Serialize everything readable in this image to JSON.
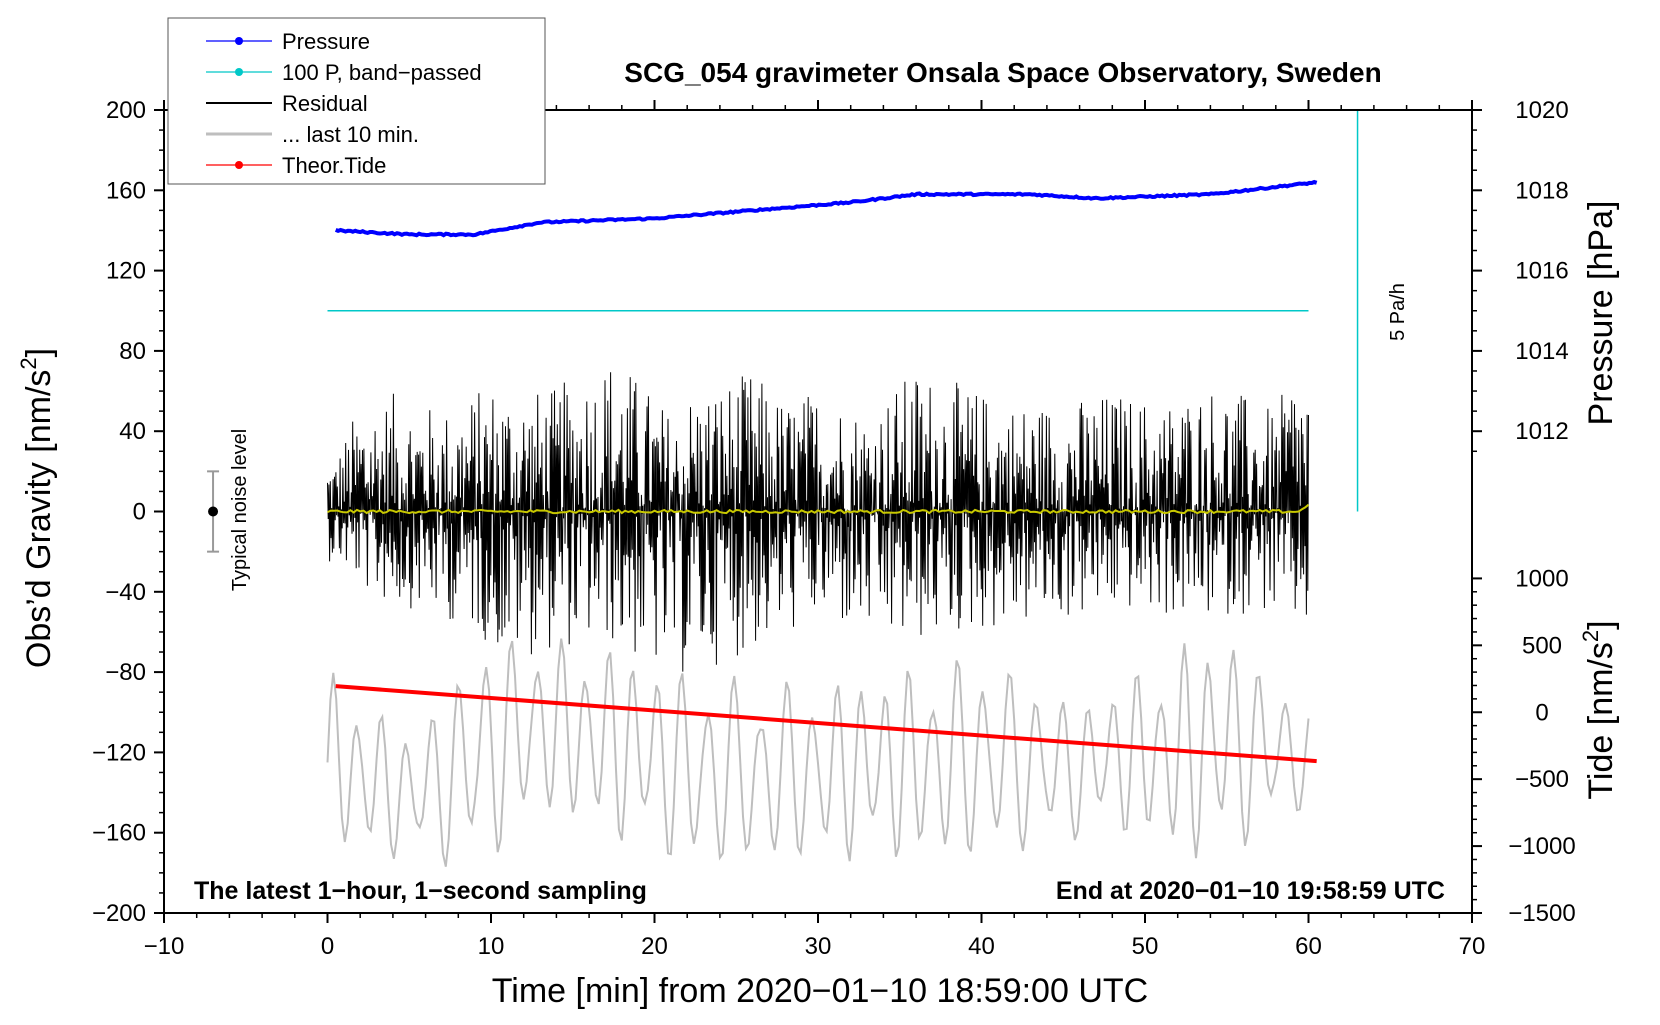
{
  "chart_data": {
    "type": "line",
    "title": "SCG_054 gravimeter Onsala Space Observatory, Sweden",
    "xlabel": "Time [min] from 2020−01−10 18:59:00 UTC",
    "ylabel_left": "Obs’d Gravity [nm/s",
    "ylabel_left_sup": "2",
    "ylabel_left_close": "]",
    "ylabel_pressure": "Pressure [hPa]",
    "ylabel_tide": "Tide [nm/s",
    "ylabel_tide_sup": "2",
    "ylabel_tide_close": "]",
    "xlim": [
      -10,
      70
    ],
    "ylim": [
      -200,
      200
    ],
    "xticks": [
      -10,
      0,
      10,
      20,
      30,
      40,
      50,
      60,
      70
    ],
    "xtick_labels": [
      "−10",
      "0",
      "10",
      "20",
      "30",
      "40",
      "50",
      "60",
      "70"
    ],
    "yticks": [
      -200,
      -160,
      -120,
      -80,
      -40,
      0,
      40,
      80,
      120,
      160,
      200
    ],
    "ytick_labels": [
      "−200",
      "−160",
      "−120",
      "−80",
      "−40",
      "0",
      "40",
      "80",
      "120",
      "160",
      "200"
    ],
    "pressure_axis": {
      "ticks": [
        1012,
        1014,
        1016,
        1018,
        1020
      ],
      "tick_labels": [
        "1012",
        "1014",
        "1016",
        "1018",
        "1020"
      ],
      "gravity_at_1012": 40,
      "gravity_per_hpa": 20
    },
    "tide_axis": {
      "ticks": [
        -1500,
        -1000,
        -500,
        0,
        500,
        1000
      ],
      "tick_labels": [
        "−1500",
        "−1000",
        "−500",
        "0",
        "500",
        "1000"
      ],
      "gravity_at_0": -100,
      "gravity_per_nms2": 0.06667
    },
    "legend": {
      "position": "top-left",
      "entries": [
        {
          "label": "Pressure",
          "color": "#0000ff",
          "marker": true
        },
        {
          "label": "100 P, band−passed",
          "color": "#00c8c8",
          "marker": true
        },
        {
          "label": "Residual",
          "color": "#000000",
          "marker": false
        },
        {
          "label": "... last 10 min.",
          "color": "#bebebe",
          "marker": false
        },
        {
          "label": "Theor.Tide",
          "color": "#ff0000",
          "marker": true
        }
      ]
    },
    "annotations": {
      "rate_label": "5 Pa/h",
      "noise_label": "Typical noise level",
      "bottom_left": "The latest 1−hour, 1−second sampling",
      "bottom_right": "End at 2020−01−10 19:58:59 UTC"
    },
    "series": [
      {
        "name": "Pressure",
        "unit": "hPa",
        "color": "#0000ff",
        "x": [
          0.5,
          5,
          9,
          13,
          20,
          26,
          32,
          36,
          43,
          47,
          54,
          60.5
        ],
        "values": [
          1017.0,
          1016.9,
          1016.9,
          1017.2,
          1017.3,
          1017.5,
          1017.7,
          1017.9,
          1017.9,
          1017.8,
          1017.9,
          1018.2
        ]
      },
      {
        "name": "100 P, band-passed",
        "unit": "nm/s2",
        "color": "#00c8c8",
        "x": [
          0,
          60
        ],
        "values": [
          100,
          100
        ]
      },
      {
        "name": "Theor.Tide",
        "unit": "nm/s2",
        "color": "#ff0000",
        "x": [
          0.5,
          60.5
        ],
        "values": [
          195,
          -365
        ]
      },
      {
        "name": "Residual",
        "unit": "nm/s2",
        "color": "#000000",
        "x_range": [
          0,
          60
        ],
        "envelope_peaks": [
          [
            0.5,
            28
          ],
          [
            2,
            55
          ],
          [
            4.5,
            60
          ],
          [
            7,
            50
          ],
          [
            10,
            65
          ],
          [
            13.5,
            60
          ],
          [
            17.5,
            80
          ],
          [
            21.5,
            45
          ],
          [
            22,
            60
          ],
          [
            26,
            70
          ],
          [
            28,
            55
          ],
          [
            30,
            62
          ],
          [
            33,
            50
          ],
          [
            36,
            72
          ],
          [
            40,
            60
          ],
          [
            42,
            55
          ],
          [
            45,
            55
          ],
          [
            48,
            60
          ],
          [
            51,
            55
          ],
          [
            54.5,
            65
          ],
          [
            58,
            50
          ],
          [
            59,
            72
          ]
        ],
        "envelope_troughs": [
          [
            0.5,
            -25
          ],
          [
            3,
            -45
          ],
          [
            6,
            -50
          ],
          [
            9,
            -60
          ],
          [
            11,
            -75
          ],
          [
            13.5,
            -70
          ],
          [
            17,
            -65
          ],
          [
            21,
            -85
          ],
          [
            26,
            -70
          ],
          [
            30,
            -55
          ],
          [
            35,
            -68
          ],
          [
            40,
            -60
          ],
          [
            45,
            -55
          ],
          [
            49,
            -50
          ],
          [
            53,
            -55
          ],
          [
            57,
            -50
          ],
          [
            59.5,
            -60
          ]
        ]
      },
      {
        "name": "Residual smoothed",
        "unit": "nm/s2",
        "color": "#c8c800",
        "x": [
          0,
          15,
          30,
          45,
          59.5,
          60
        ],
        "values": [
          0,
          0,
          0,
          0,
          0,
          4
        ]
      },
      {
        "name": "... last 10 min.",
        "unit": "nm/s2",
        "color": "#bebebe",
        "x_range": [
          0,
          60
        ],
        "center": -140,
        "peaks": [
          [
            0.3,
            -80
          ],
          [
            5,
            -110
          ],
          [
            10,
            -60
          ],
          [
            17,
            -65
          ],
          [
            22.5,
            -80
          ],
          [
            30,
            -85
          ],
          [
            40,
            -70
          ],
          [
            46,
            -95
          ],
          [
            54.5,
            -55
          ],
          [
            59.5,
            -95
          ]
        ],
        "troughs": [
          [
            1,
            -170
          ],
          [
            9.5,
            -180
          ],
          [
            13,
            -150
          ],
          [
            22.5,
            -180
          ],
          [
            30,
            -175
          ],
          [
            40,
            -175
          ],
          [
            48,
            -160
          ],
          [
            54,
            -178
          ],
          [
            59.5,
            -150
          ]
        ]
      }
    ],
    "noise_bar": {
      "x": -7,
      "y": 0,
      "ymin": -20,
      "ymax": 20
    }
  }
}
